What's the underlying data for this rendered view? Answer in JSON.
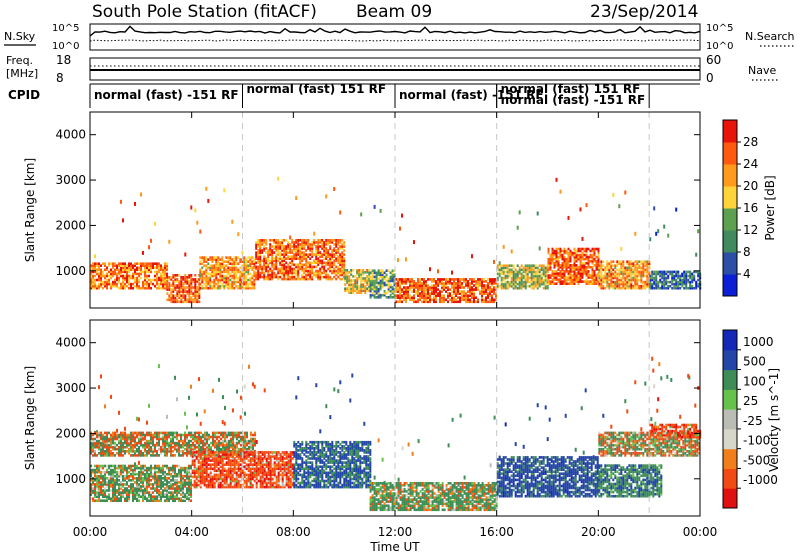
{
  "header": {
    "title": "South Pole Station (fitACF)",
    "beam": "Beam 09",
    "date": "23/Sep/2014"
  },
  "noise_panel": {
    "left_label": "N.Sky",
    "right_label": "N.Search",
    "left_ticks": [
      "10^5",
      "10^0"
    ],
    "right_ticks": [
      "10^5",
      "10^0"
    ]
  },
  "freq_panel": {
    "left_label_line1": "Freq.",
    "left_label_line2": "[MHz]",
    "right_label": "Nave",
    "left_ticks": [
      "18",
      "8"
    ],
    "right_ticks": [
      "60",
      "0"
    ]
  },
  "cpid": {
    "label": "CPID",
    "segments": [
      {
        "text": "normal (fast) -151 RF",
        "start": 0.0,
        "end": 6.0
      },
      {
        "text": "normal (fast) 151 RF",
        "start": 6.0,
        "end": 12.0
      },
      {
        "text": "normal (fast) -151 RF",
        "start": 12.0,
        "end": 16.0
      },
      {
        "text": "normal (fast) 151 RF",
        "start": 16.0,
        "end": 22.0
      },
      {
        "text": "normal (fast) -151 RF",
        "start": 16.0,
        "end": 22.0
      }
    ]
  },
  "colors": {
    "power_scale": [
      "#0a1fd6",
      "#2d4ea6",
      "#3f8a5e",
      "#5da04f",
      "#ffd43a",
      "#ff9a1a",
      "#ff5a10",
      "#e8140a"
    ],
    "velocity_scale": [
      "#e01010",
      "#f24a14",
      "#f07f1b",
      "#d6d6c9",
      "#b9bdb3",
      "#66c24a",
      "#3e8d57",
      "#2345a8",
      "#1428b8"
    ],
    "ground_scatter": "#a0a0a0"
  },
  "chart_data": [
    {
      "type": "heatmap",
      "title": "",
      "xlabel": "",
      "ylabel": "Slant Range [km]",
      "xlim": [
        0,
        24
      ],
      "ylim": [
        180,
        4500
      ],
      "yticks": [
        "1000",
        "2000",
        "3000",
        "4000"
      ],
      "colorbar": {
        "label": "Power [dB]",
        "ticks": [
          "4",
          "8",
          "12",
          "16",
          "20",
          "24",
          "28"
        ]
      },
      "bands": [
        {
          "t0": 0.0,
          "t1": 3.0,
          "r0": 600,
          "r1": 1150,
          "value": 24
        },
        {
          "t0": 3.0,
          "t1": 4.3,
          "r0": 300,
          "r1": 900,
          "value": 26
        },
        {
          "t0": 4.3,
          "t1": 6.5,
          "r0": 600,
          "r1": 1300,
          "value": 22
        },
        {
          "t0": 6.5,
          "t1": 10.0,
          "r0": 800,
          "r1": 1700,
          "value": 25
        },
        {
          "t0": 10.0,
          "t1": 11.0,
          "r0": 500,
          "r1": 1000,
          "value": 18
        },
        {
          "t0": 11.0,
          "t1": 12.0,
          "r0": 400,
          "r1": 1000,
          "value": 12
        },
        {
          "t0": 12.0,
          "t1": 16.0,
          "r0": 300,
          "r1": 800,
          "value": 26
        },
        {
          "t0": 16.0,
          "t1": 18.0,
          "r0": 600,
          "r1": 1100,
          "value": 16
        },
        {
          "t0": 18.0,
          "t1": 20.0,
          "r0": 700,
          "r1": 1500,
          "value": 26
        },
        {
          "t0": 20.0,
          "t1": 22.0,
          "r0": 600,
          "r1": 1200,
          "value": 22
        },
        {
          "t0": 22.0,
          "t1": 24.0,
          "r0": 600,
          "r1": 1000,
          "value": 8
        }
      ]
    },
    {
      "type": "heatmap",
      "title": "",
      "xlabel": "Time UT",
      "ylabel": "Slant Range [km]",
      "xlim": [
        0,
        24
      ],
      "ylim": [
        180,
        4500
      ],
      "xticks": [
        "00:00",
        "04:00",
        "08:00",
        "12:00",
        "16:00",
        "20:00",
        "00:00"
      ],
      "yticks": [
        "1000",
        "2000",
        "3000",
        "4000"
      ],
      "colorbar": {
        "label": "Velocity [m s^-1]",
        "ticks": [
          "1000",
          "500",
          "100",
          "25",
          "-25",
          "-100",
          "-500",
          "-1000"
        ]
      },
      "bands": [
        {
          "t0": 0.0,
          "t1": 4.0,
          "r0": 500,
          "r1": 1300,
          "value": 150
        },
        {
          "t0": 0.0,
          "t1": 6.5,
          "r0": 1500,
          "r1": 2000,
          "value": 0
        },
        {
          "t0": 4.0,
          "t1": 8.0,
          "r0": 800,
          "r1": 1600,
          "value": -300
        },
        {
          "t0": 8.0,
          "t1": 11.0,
          "r0": 800,
          "r1": 1800,
          "value": 600
        },
        {
          "t0": 11.0,
          "t1": 16.0,
          "r0": 300,
          "r1": 900,
          "value": 150
        },
        {
          "t0": 16.0,
          "t1": 20.0,
          "r0": 600,
          "r1": 1500,
          "value": 700
        },
        {
          "t0": 20.0,
          "t1": 22.5,
          "r0": 600,
          "r1": 1300,
          "value": 400
        },
        {
          "t0": 20.0,
          "t1": 24.0,
          "r0": 1500,
          "r1": 2000,
          "value": 0
        },
        {
          "t0": 22.0,
          "t1": 24.0,
          "r0": 1900,
          "r1": 2200,
          "value": -300
        }
      ]
    }
  ]
}
